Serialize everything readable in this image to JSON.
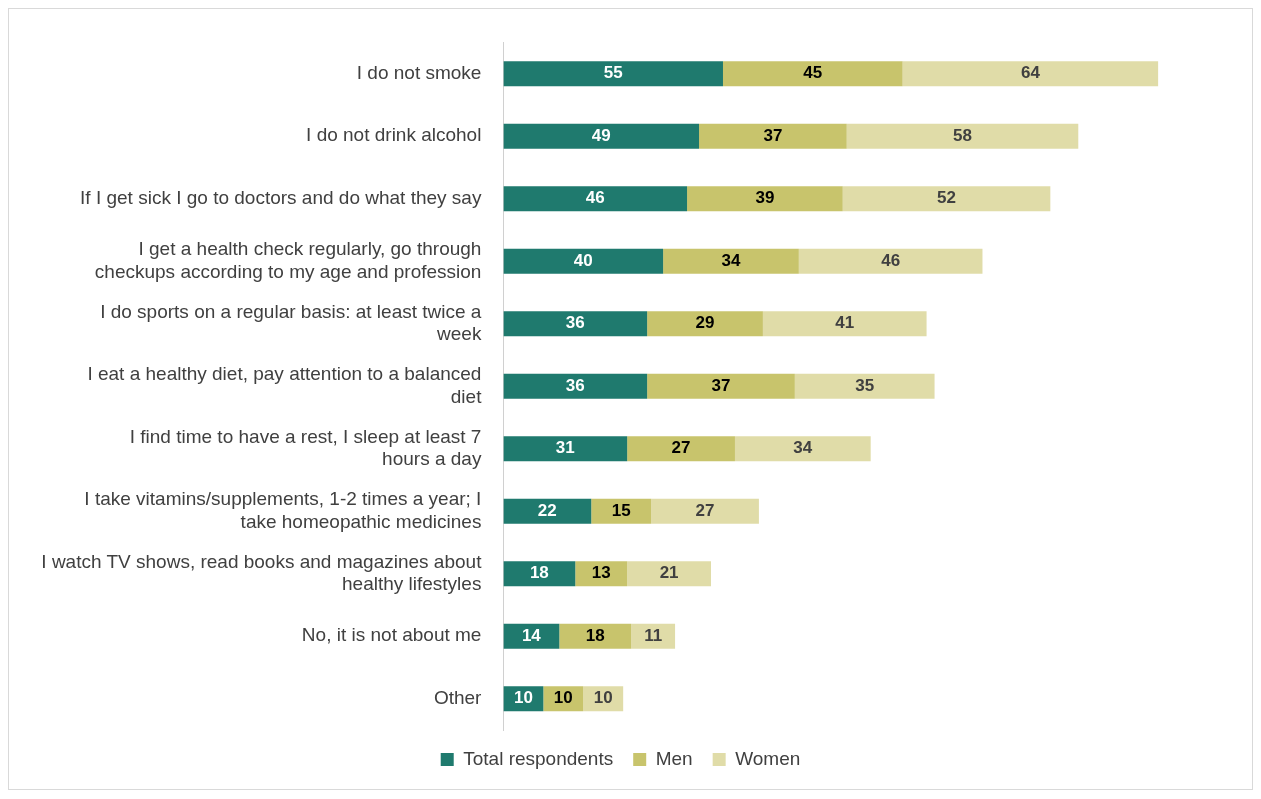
{
  "chart_data": {
    "type": "bar",
    "orientation": "horizontal",
    "stacked": true,
    "data_labels": true,
    "legend": "bottom",
    "grid": false,
    "categories": [
      "I do not smoke",
      "I do not drink alcohol",
      "If I get sick I go to doctors and do what they say",
      "I get a health check regularly, go through checkups according to my age and profession",
      "I do sports on a regular basis: at least twice a week",
      "I eat a healthy diet, pay attention to a balanced diet",
      "I find time to have a rest, I sleep at least 7 hours a day",
      "I take vitamins/supplements, 1-2 times a year; I take homeopathic medicines",
      "I watch TV shows, read books and magazines about healthy lifestyles",
      "No, it is not about me",
      "Other"
    ],
    "series": [
      {
        "name": "Total respondents",
        "color": "#1f7a6e",
        "values": [
          55,
          49,
          46,
          40,
          36,
          36,
          31,
          22,
          18,
          14,
          10
        ]
      },
      {
        "name": "Men",
        "color": "#c8c46c",
        "values": [
          45,
          37,
          39,
          34,
          29,
          37,
          27,
          15,
          13,
          18,
          10
        ]
      },
      {
        "name": "Women",
        "color": "#e0dca8",
        "values": [
          64,
          58,
          52,
          46,
          41,
          35,
          34,
          27,
          21,
          11,
          10
        ]
      }
    ]
  }
}
